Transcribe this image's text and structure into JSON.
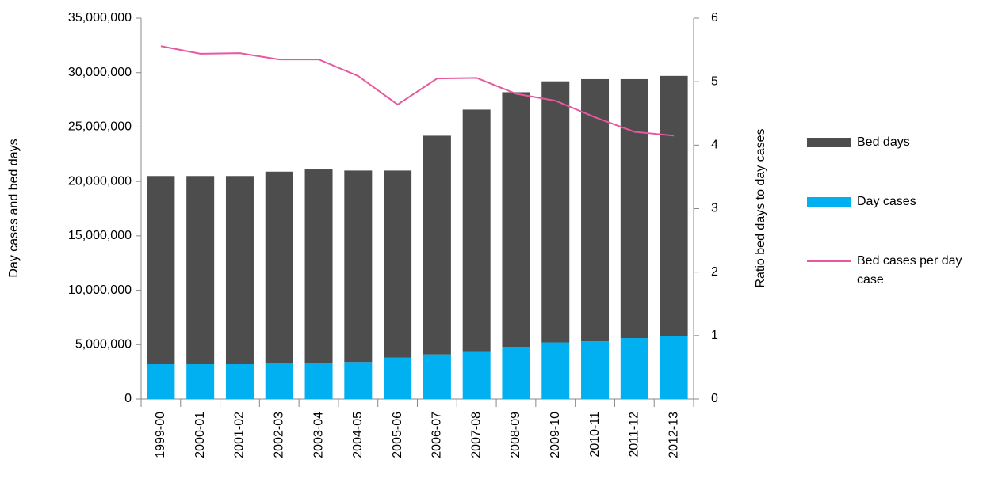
{
  "chart_data": {
    "type": "bar",
    "categories": [
      "1999-00",
      "2000-01",
      "2001-02",
      "2002-03",
      "2003-04",
      "2004-05",
      "2005-06",
      "2006-07",
      "2007-08",
      "2008-09",
      "2009-10",
      "2010-11",
      "2011-12",
      "2012-13"
    ],
    "stacked": true,
    "series": [
      {
        "name": "Day cases",
        "color": "#00b0f0",
        "values": [
          3200000,
          3200000,
          3200000,
          3300000,
          3300000,
          3400000,
          3800000,
          4100000,
          4400000,
          4800000,
          5200000,
          5300000,
          5600000,
          5800000
        ]
      },
      {
        "name": "Bed days",
        "color": "#4d4d4d",
        "values": [
          17300000,
          17300000,
          17300000,
          17600000,
          17800000,
          17600000,
          17200000,
          20100000,
          22200000,
          23400000,
          24000000,
          24100000,
          23800000,
          23900000
        ]
      },
      {
        "name": "Bed cases per day case",
        "color": "#e8589e",
        "type": "line",
        "axis": "y2",
        "values": [
          5.56,
          5.44,
          5.45,
          5.35,
          5.35,
          5.09,
          4.64,
          5.05,
          5.06,
          4.81,
          4.7,
          4.44,
          4.21,
          4.15
        ]
      }
    ],
    "y_label": "Day cases and bed days",
    "y2_label": "Ratio bed days to day cases",
    "ylim": [
      0,
      35000000
    ],
    "yticks": [
      0,
      {
        "value": 5000000,
        "label": "5,000,000"
      },
      {
        "value": 10000000,
        "label": "10,000,000"
      },
      {
        "value": 15000000,
        "label": "15,000,000"
      },
      {
        "value": 20000000,
        "label": "20,000,000"
      },
      {
        "value": 25000000,
        "label": "25,000,000"
      },
      {
        "value": 30000000,
        "label": "30,000,000"
      },
      {
        "value": 35000000,
        "label": "35,000,000"
      }
    ],
    "y2lim": [
      0,
      6
    ],
    "y2ticks": [
      0,
      1,
      2,
      3,
      4,
      5,
      6
    ],
    "grid": false,
    "legend": "right"
  }
}
